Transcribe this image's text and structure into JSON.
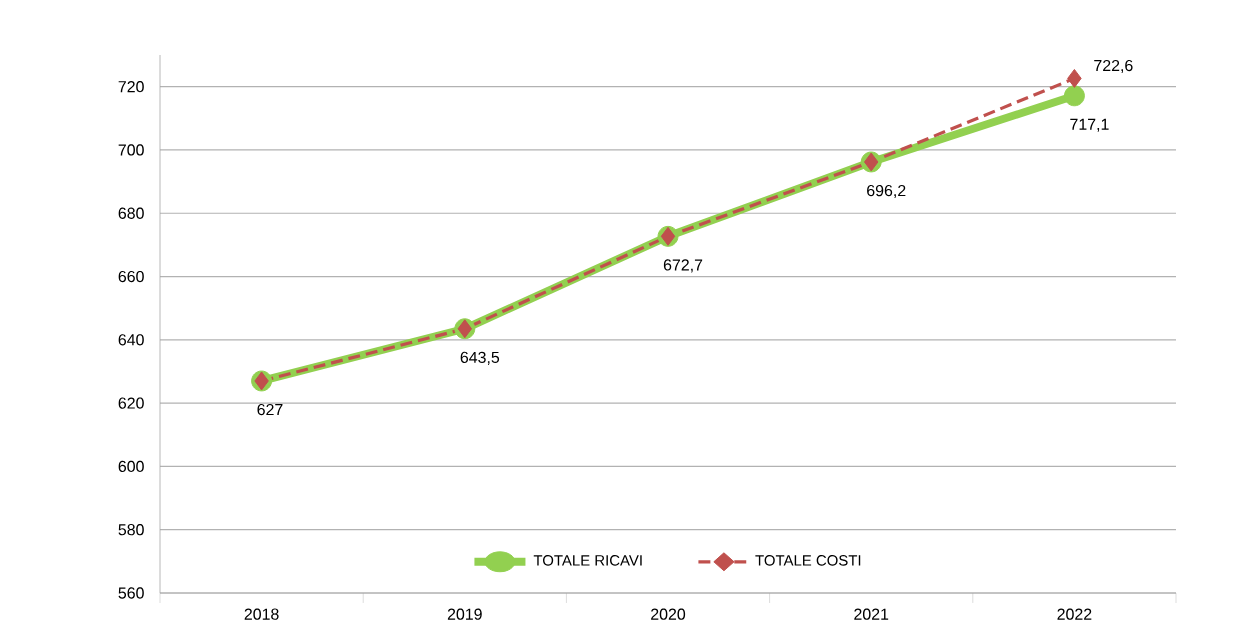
{
  "chart_data": {
    "type": "line",
    "categories": [
      "2018",
      "2019",
      "2020",
      "2021",
      "2022"
    ],
    "series": [
      {
        "name": "TOTALE RICAVI",
        "color": "#92d050",
        "marker": "circle",
        "line_style": "solid",
        "values": [
          627,
          643.5,
          672.7,
          696.2,
          717.1
        ],
        "value_labels": [
          "627",
          "643,5",
          "672,7",
          "696,2",
          "717,1"
        ]
      },
      {
        "name": "TOTALE COSTI",
        "color": "#c0504d",
        "marker": "diamond",
        "line_style": "dashed",
        "values": [
          627,
          643.5,
          672.7,
          696.2,
          722.6
        ],
        "value_labels": [
          null,
          null,
          null,
          null,
          "722,6"
        ]
      }
    ],
    "ylim": [
      560,
      730
    ],
    "yticks": [
      560,
      580,
      600,
      620,
      640,
      660,
      680,
      700,
      720
    ],
    "grid": "y",
    "legend": "bottom"
  }
}
